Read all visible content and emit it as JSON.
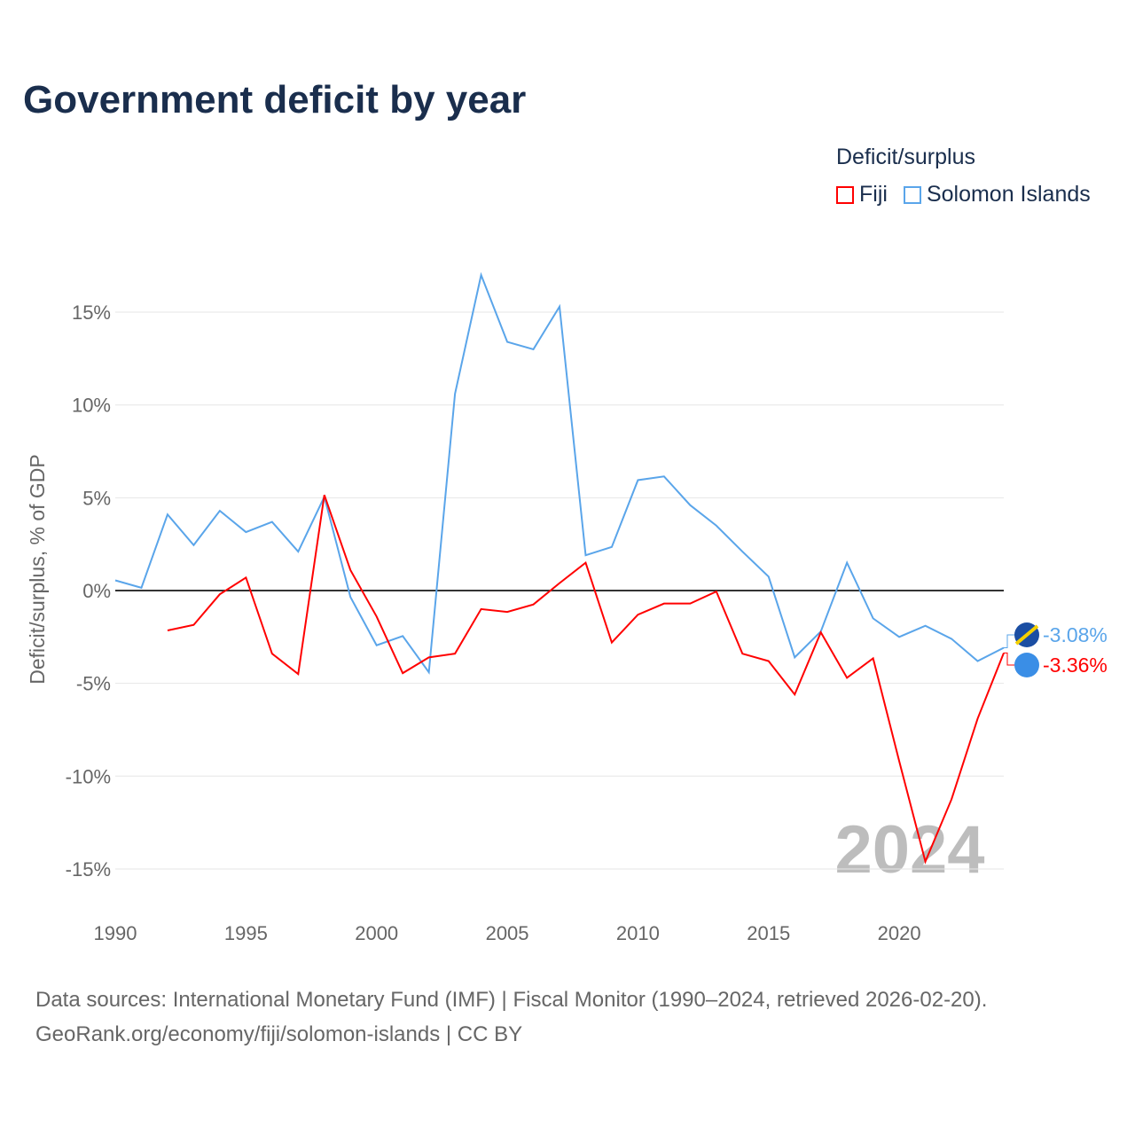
{
  "title": "Government deficit by year",
  "legend": {
    "title": "Deficit/surplus",
    "items": [
      "Fiji",
      "Solomon Islands"
    ]
  },
  "colors": {
    "Fiji": "#ff0000",
    "Solomon Islands": "#5aa5ea"
  },
  "watermark_year": "2024",
  "source": {
    "line1": "Data sources: International Monetary Fund (IMF) | Fiscal Monitor (1990–2024, retrieved 2026-02-20).",
    "line2": "GeoRank.org/economy/fiji/solomon-islands | CC BY"
  },
  "chart_data": {
    "type": "line",
    "title": "Government deficit by year",
    "ylabel": "Deficit/surplus, % of GDP",
    "xlabel": "",
    "xlim": [
      1990,
      2024
    ],
    "ylim": [
      -17,
      18
    ],
    "yticks": [
      15,
      10,
      5,
      0,
      -5,
      -10,
      -15
    ],
    "ytick_labels": [
      "15%",
      "10%",
      "5%",
      "0%",
      "-5%",
      "-10%",
      "-15%"
    ],
    "xticks": [
      1990,
      1995,
      2000,
      2005,
      2010,
      2015,
      2020
    ],
    "xtick_labels": [
      "1990",
      "1995",
      "2000",
      "2005",
      "2010",
      "2015",
      "2020"
    ],
    "end_labels": {
      "Fiji": "-3.36%",
      "Solomon Islands": "-3.08%"
    },
    "series": [
      {
        "name": "Solomon Islands",
        "x": [
          1990,
          1991,
          1992,
          1993,
          1994,
          1995,
          1996,
          1997,
          1998,
          1999,
          2000,
          2001,
          2002,
          2003,
          2004,
          2005,
          2006,
          2007,
          2008,
          2009,
          2010,
          2011,
          2012,
          2013,
          2014,
          2015,
          2016,
          2017,
          2018,
          2019,
          2020,
          2021,
          2022,
          2023,
          2024
        ],
        "values": [
          0.55,
          0.15,
          4.1,
          2.45,
          4.3,
          3.15,
          3.7,
          2.1,
          5.05,
          -0.35,
          -2.95,
          -2.45,
          -4.4,
          10.6,
          17.0,
          13.4,
          13.0,
          15.3,
          1.9,
          2.35,
          5.95,
          6.15,
          4.6,
          3.5,
          2.1,
          0.75,
          -3.6,
          -2.2,
          1.5,
          -1.5,
          -2.5,
          -1.9,
          -2.6,
          -3.8,
          -3.08
        ]
      },
      {
        "name": "Fiji",
        "x": [
          1992,
          1993,
          1994,
          1995,
          1996,
          1997,
          1998,
          1999,
          2000,
          2001,
          2002,
          2003,
          2004,
          2005,
          2006,
          2007,
          2008,
          2009,
          2010,
          2011,
          2012,
          2013,
          2014,
          2015,
          2016,
          2017,
          2018,
          2019,
          2020,
          2021,
          2022,
          2023,
          2024
        ],
        "values": [
          -2.15,
          -1.85,
          -0.2,
          0.7,
          -3.4,
          -4.5,
          5.15,
          1.1,
          -1.4,
          -4.45,
          -3.6,
          -3.4,
          -1.0,
          -1.15,
          -0.75,
          0.4,
          1.5,
          -2.8,
          -1.3,
          -0.7,
          -0.7,
          -0.05,
          -3.4,
          -3.8,
          -5.6,
          -2.25,
          -4.7,
          -3.65,
          -9.2,
          -14.6,
          -11.25,
          -6.9,
          -3.36
        ]
      }
    ]
  }
}
